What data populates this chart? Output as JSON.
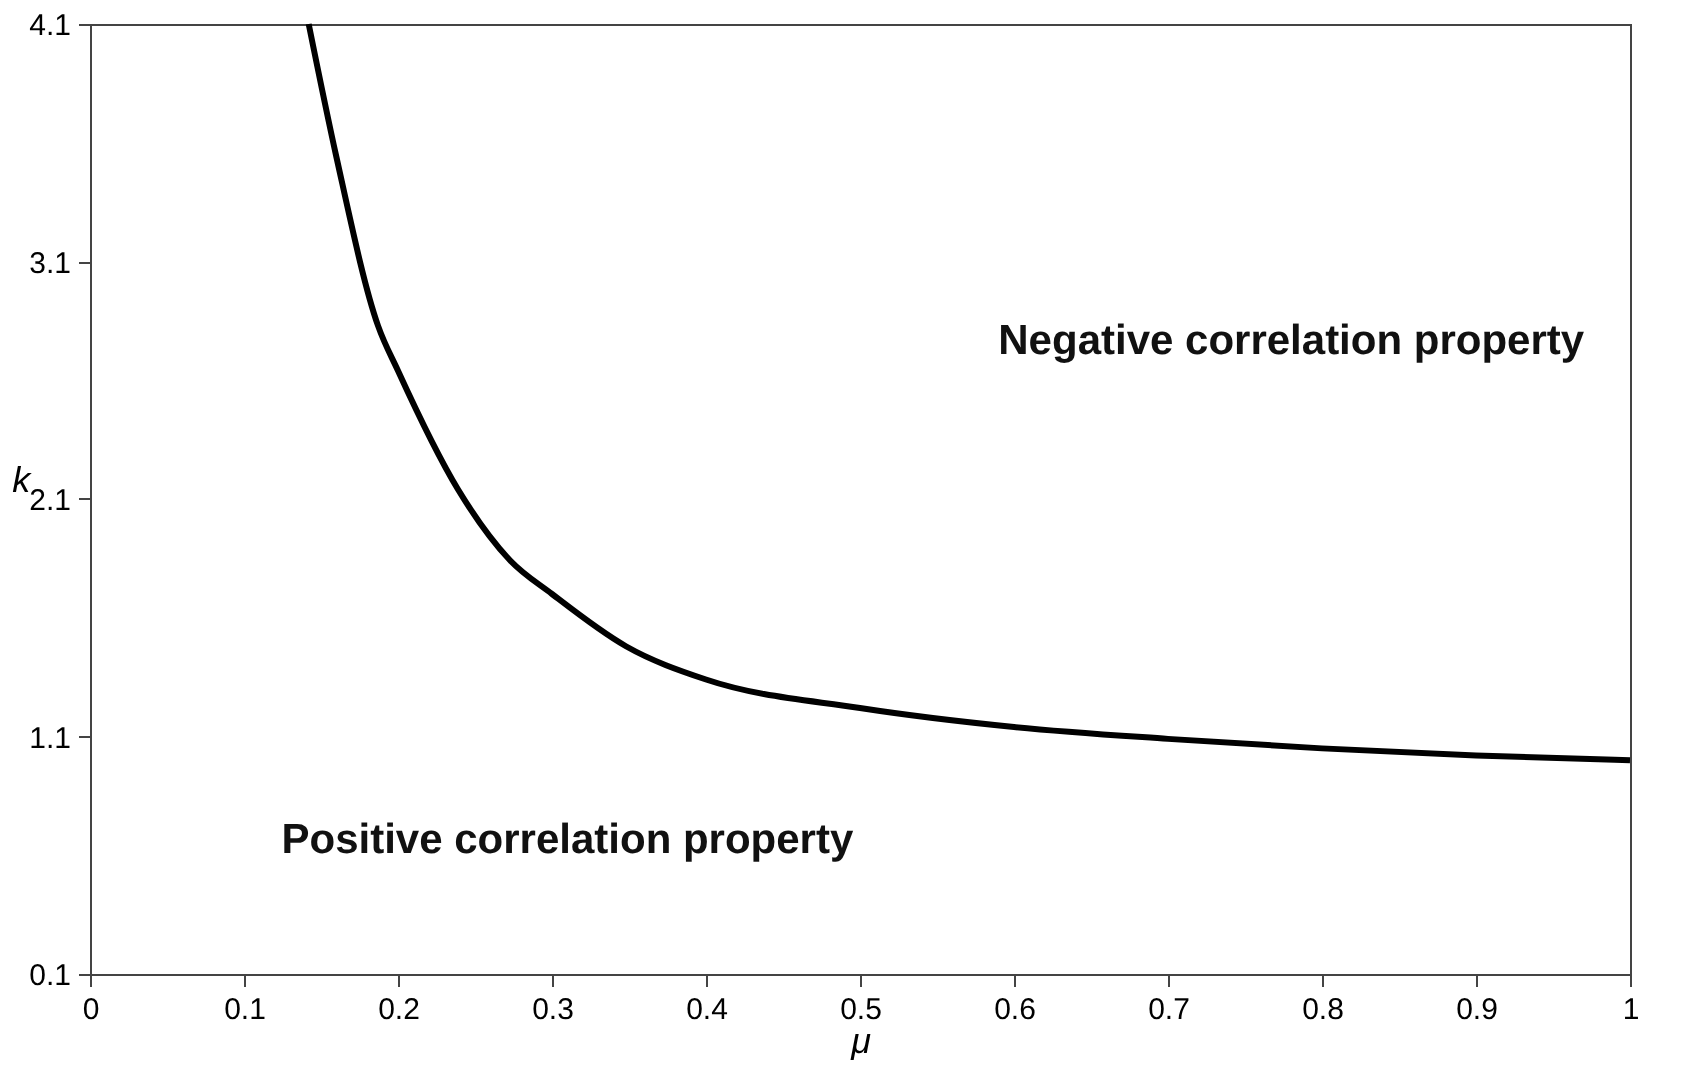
{
  "chart_data": {
    "type": "line",
    "xlabel": "μ",
    "ylabel": "k",
    "x": [
      0.142,
      0.16,
      0.187,
      0.2,
      0.239,
      0.273,
      0.3,
      0.348,
      0.4,
      0.5,
      0.6,
      0.7,
      0.8,
      0.9,
      1.0
    ],
    "series": [
      {
        "color": "#000000",
        "values": [
          4.1,
          3.54,
          2.83,
          2.64,
          2.14,
          1.84,
          1.7,
          1.48,
          1.34,
          1.22,
          1.14,
          1.09,
          1.05,
          1.02,
          1.0
        ]
      }
    ],
    "xlim": [
      0,
      1
    ],
    "ylim": [
      0.1,
      4.1
    ],
    "xticks": [
      0,
      0.1,
      0.2,
      0.3,
      0.4,
      0.5,
      0.6,
      0.7,
      0.8,
      0.9,
      1
    ],
    "yticks": [
      0.1,
      1.1,
      2.1,
      3.1,
      4.1
    ],
    "annotations": [
      "Negative correlation property",
      "Positive correlation property"
    ],
    "grid": false,
    "marker": "none",
    "line_style": "solid"
  }
}
